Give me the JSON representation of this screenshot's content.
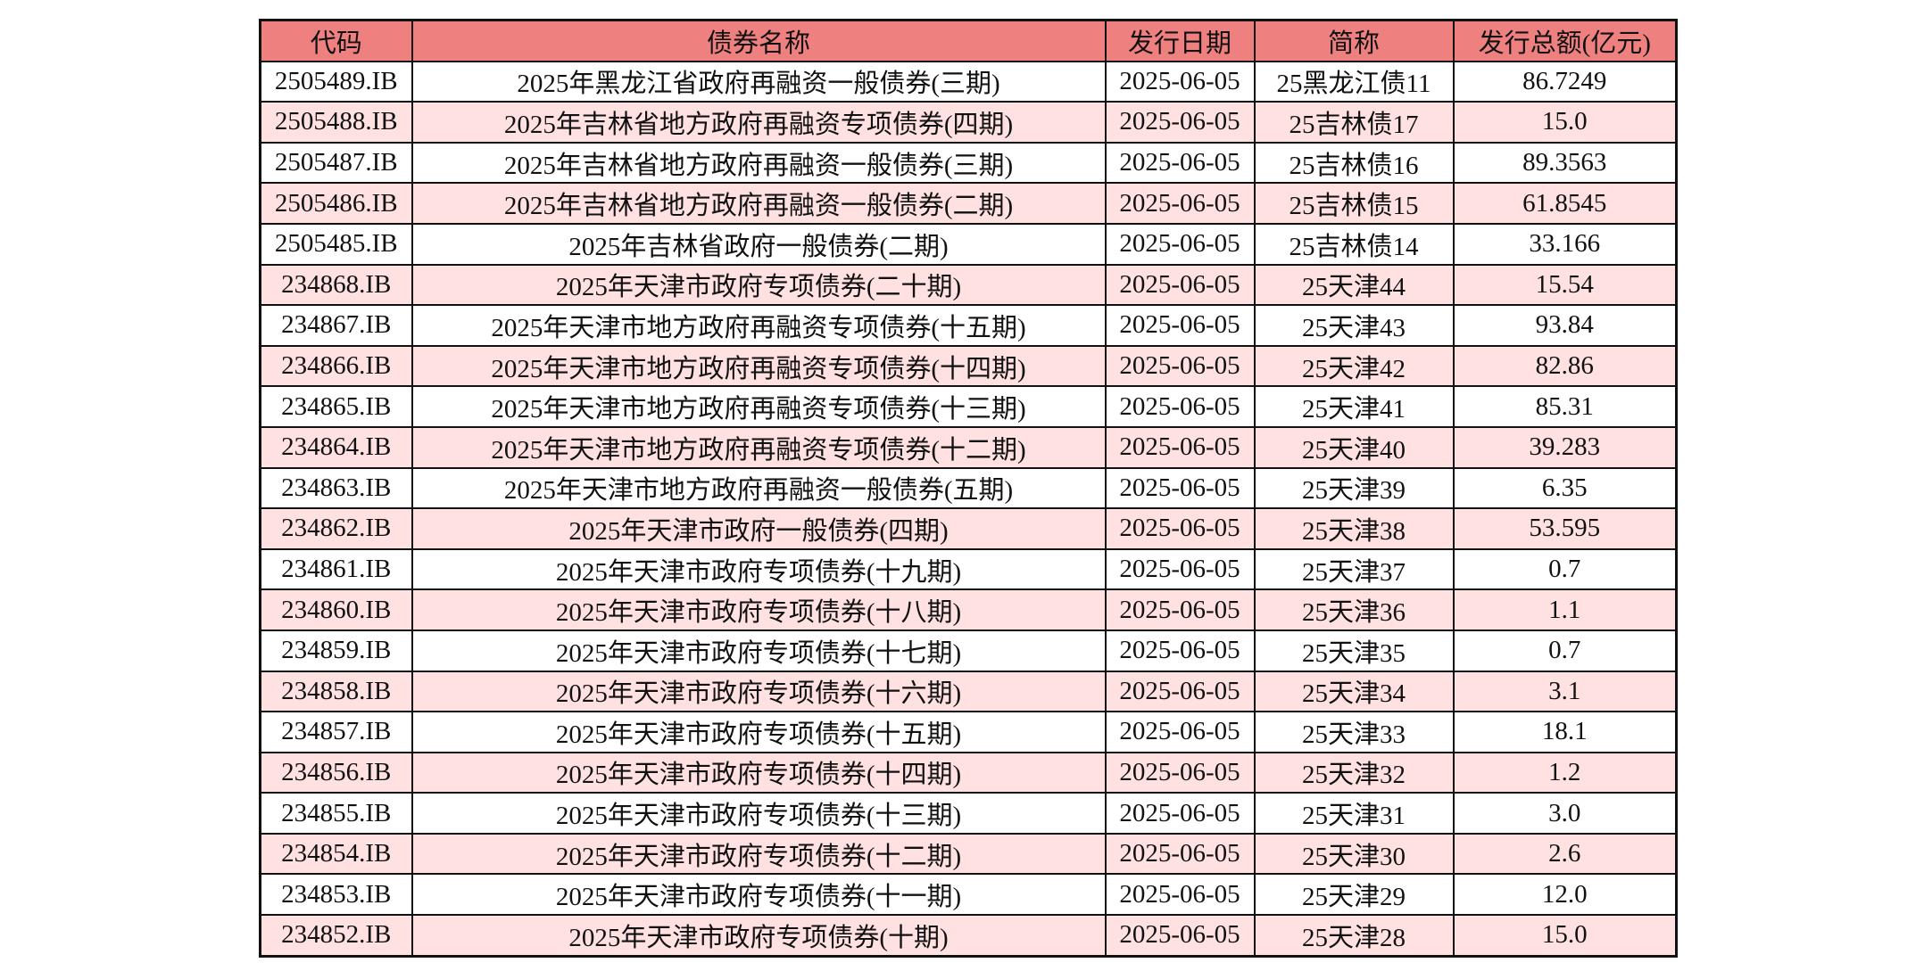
{
  "colors": {
    "header_bg": "#EF8080",
    "alt_row_bg": "#FFE1E1",
    "row_bg": "#FFFFFF"
  },
  "table": {
    "headers": [
      "代码",
      "债券名称",
      "发行日期",
      "简称",
      "发行总额(亿元)"
    ],
    "rows": [
      [
        "2505489.IB",
        "2025年黑龙江省政府再融资一般债券(三期)",
        "2025-06-05",
        "25黑龙江债11",
        "86.7249"
      ],
      [
        "2505488.IB",
        "2025年吉林省地方政府再融资专项债券(四期)",
        "2025-06-05",
        "25吉林债17",
        "15.0"
      ],
      [
        "2505487.IB",
        "2025年吉林省地方政府再融资一般债券(三期)",
        "2025-06-05",
        "25吉林债16",
        "89.3563"
      ],
      [
        "2505486.IB",
        "2025年吉林省地方政府再融资一般债券(二期)",
        "2025-06-05",
        "25吉林债15",
        "61.8545"
      ],
      [
        "2505485.IB",
        "2025年吉林省政府一般债券(二期)",
        "2025-06-05",
        "25吉林债14",
        "33.166"
      ],
      [
        "234868.IB",
        "2025年天津市政府专项债券(二十期)",
        "2025-06-05",
        "25天津44",
        "15.54"
      ],
      [
        "234867.IB",
        "2025年天津市地方政府再融资专项债券(十五期)",
        "2025-06-05",
        "25天津43",
        "93.84"
      ],
      [
        "234866.IB",
        "2025年天津市地方政府再融资专项债券(十四期)",
        "2025-06-05",
        "25天津42",
        "82.86"
      ],
      [
        "234865.IB",
        "2025年天津市地方政府再融资专项债券(十三期)",
        "2025-06-05",
        "25天津41",
        "85.31"
      ],
      [
        "234864.IB",
        "2025年天津市地方政府再融资专项债券(十二期)",
        "2025-06-05",
        "25天津40",
        "39.283"
      ],
      [
        "234863.IB",
        "2025年天津市地方政府再融资一般债券(五期)",
        "2025-06-05",
        "25天津39",
        "6.35"
      ],
      [
        "234862.IB",
        "2025年天津市政府一般债券(四期)",
        "2025-06-05",
        "25天津38",
        "53.595"
      ],
      [
        "234861.IB",
        "2025年天津市政府专项债券(十九期)",
        "2025-06-05",
        "25天津37",
        "0.7"
      ],
      [
        "234860.IB",
        "2025年天津市政府专项债券(十八期)",
        "2025-06-05",
        "25天津36",
        "1.1"
      ],
      [
        "234859.IB",
        "2025年天津市政府专项债券(十七期)",
        "2025-06-05",
        "25天津35",
        "0.7"
      ],
      [
        "234858.IB",
        "2025年天津市政府专项债券(十六期)",
        "2025-06-05",
        "25天津34",
        "3.1"
      ],
      [
        "234857.IB",
        "2025年天津市政府专项债券(十五期)",
        "2025-06-05",
        "25天津33",
        "18.1"
      ],
      [
        "234856.IB",
        "2025年天津市政府专项债券(十四期)",
        "2025-06-05",
        "25天津32",
        "1.2"
      ],
      [
        "234855.IB",
        "2025年天津市政府专项债券(十三期)",
        "2025-06-05",
        "25天津31",
        "3.0"
      ],
      [
        "234854.IB",
        "2025年天津市政府专项债券(十二期)",
        "2025-06-05",
        "25天津30",
        "2.6"
      ],
      [
        "234853.IB",
        "2025年天津市政府专项债券(十一期)",
        "2025-06-05",
        "25天津29",
        "12.0"
      ],
      [
        "234852.IB",
        "2025年天津市政府专项债券(十期)",
        "2025-06-05",
        "25天津28",
        "15.0"
      ]
    ]
  }
}
